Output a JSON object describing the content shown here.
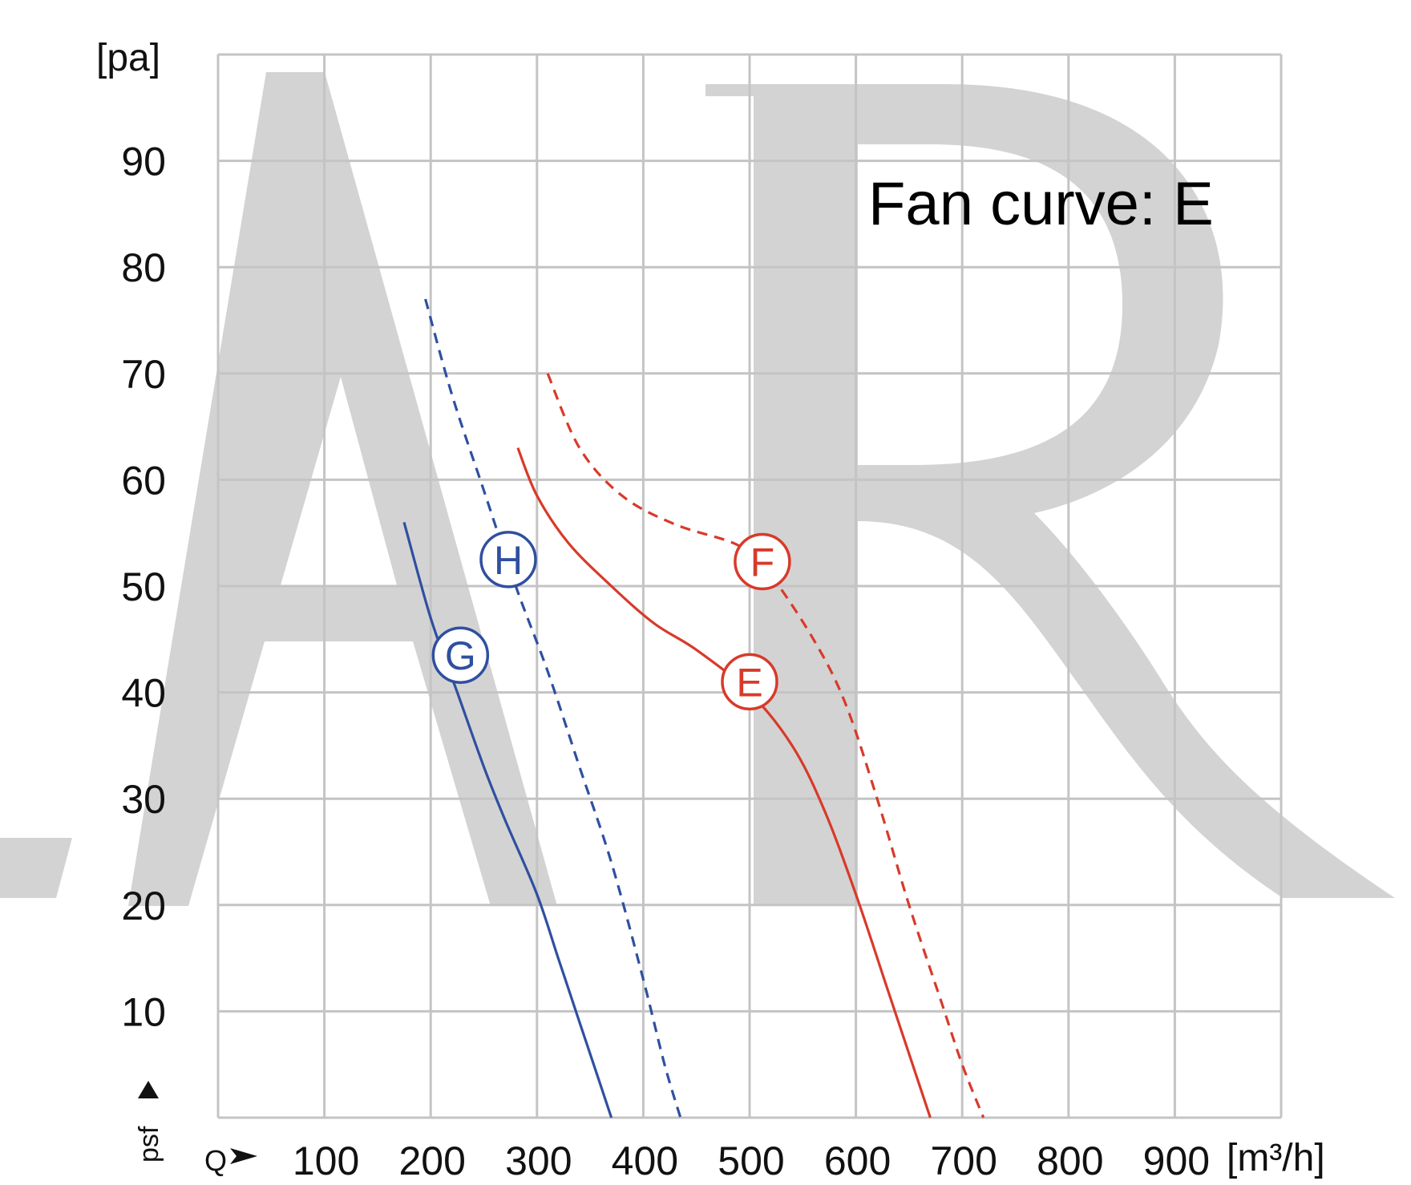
{
  "chart_data": {
    "type": "line",
    "title": "",
    "annotation": "Fan curve: E",
    "xlabel": "Q",
    "ylabel": "psf",
    "x_unit": "[m³/h]",
    "y_unit": "[pa]",
    "xlim": [
      0,
      1000
    ],
    "ylim": [
      0,
      100
    ],
    "x_ticks": [
      "100",
      "200",
      "300",
      "400",
      "500",
      "600",
      "700",
      "800",
      "900"
    ],
    "y_ticks": [
      "10",
      "20",
      "30",
      "40",
      "50",
      "60",
      "70",
      "80",
      "90"
    ],
    "grid": true,
    "watermark": "AR",
    "colors": {
      "blue": "#2f4fa0",
      "red": "#d83a2a",
      "grid": "#c4c4c4",
      "watermark": "#d3d3d3"
    },
    "series": [
      {
        "name": "E",
        "color": "#d83a2a",
        "dashed": false,
        "points": [
          [
            282,
            63
          ],
          [
            300,
            58.5
          ],
          [
            330,
            54
          ],
          [
            370,
            50
          ],
          [
            410,
            46.5
          ],
          [
            450,
            44
          ],
          [
            500,
            40
          ],
          [
            540,
            35
          ],
          [
            570,
            29
          ],
          [
            600,
            21
          ],
          [
            630,
            12
          ],
          [
            650,
            6
          ],
          [
            670,
            0
          ]
        ]
      },
      {
        "name": "F",
        "color": "#d83a2a",
        "dashed": true,
        "points": [
          [
            310,
            70
          ],
          [
            340,
            63
          ],
          [
            380,
            58.5
          ],
          [
            430,
            55.8
          ],
          [
            490,
            53.8
          ],
          [
            520,
            51
          ],
          [
            560,
            45
          ],
          [
            590,
            39
          ],
          [
            620,
            30
          ],
          [
            650,
            20
          ],
          [
            680,
            11
          ],
          [
            700,
            5
          ],
          [
            720,
            0
          ]
        ]
      },
      {
        "name": "G",
        "color": "#2f4fa0",
        "dashed": false,
        "points": [
          [
            175,
            56
          ],
          [
            200,
            47
          ],
          [
            225,
            40
          ],
          [
            250,
            33
          ],
          [
            270,
            28
          ],
          [
            300,
            21
          ],
          [
            320,
            15
          ],
          [
            340,
            9
          ],
          [
            360,
            3
          ],
          [
            370,
            0
          ]
        ]
      },
      {
        "name": "H",
        "color": "#2f4fa0",
        "dashed": true,
        "points": [
          [
            195,
            77
          ],
          [
            220,
            68
          ],
          [
            250,
            59
          ],
          [
            280,
            50
          ],
          [
            310,
            42
          ],
          [
            340,
            33
          ],
          [
            370,
            24
          ],
          [
            400,
            13
          ],
          [
            420,
            5
          ],
          [
            435,
            0
          ]
        ]
      }
    ],
    "markers": [
      {
        "label": "E",
        "x": 500,
        "y": 41,
        "color": "#d83a2a"
      },
      {
        "label": "F",
        "x": 512,
        "y": 52.3,
        "color": "#d83a2a"
      },
      {
        "label": "G",
        "x": 228,
        "y": 43.5,
        "color": "#2f4fa0"
      },
      {
        "label": "H",
        "x": 273,
        "y": 52.5,
        "color": "#2f4fa0"
      }
    ]
  }
}
